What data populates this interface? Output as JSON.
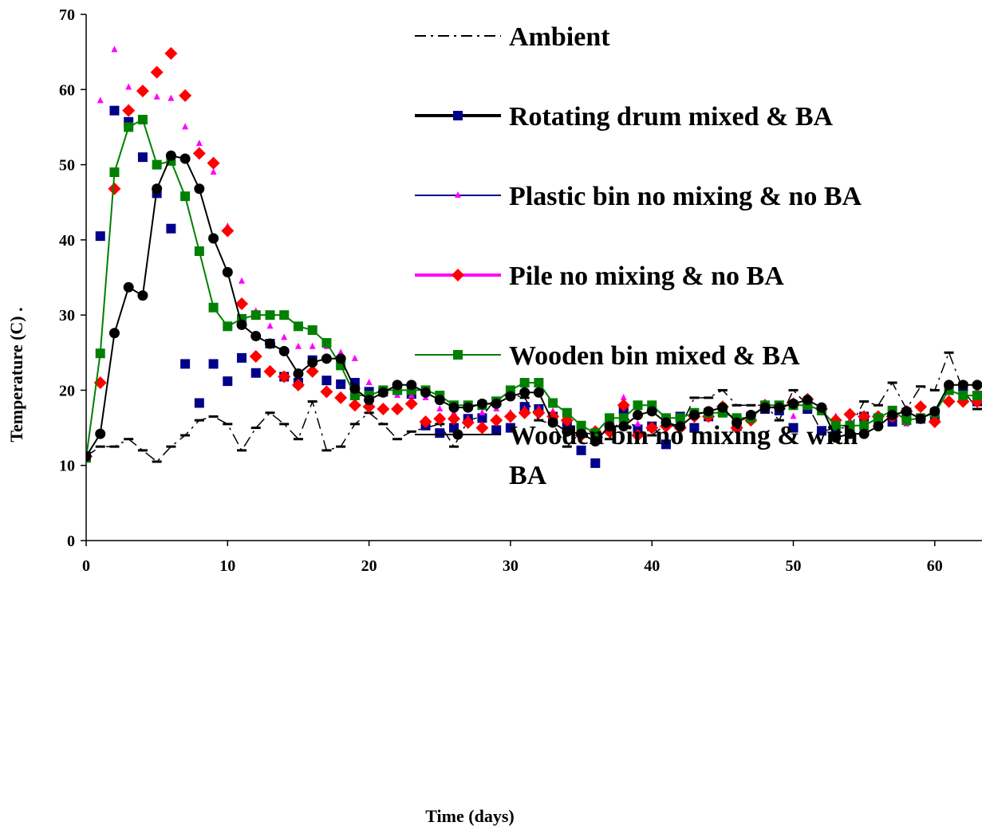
{
  "chart_data": {
    "type": "line",
    "title": "",
    "xlabel": "Time (days)",
    "ylabel": "Temperature (C)  .",
    "xlim": [
      0,
      63
    ],
    "ylim": [
      0,
      70
    ],
    "x_ticks": [
      0,
      10,
      20,
      30,
      40,
      50,
      60
    ],
    "y_ticks": [
      0,
      10,
      20,
      30,
      40,
      50,
      60,
      70
    ],
    "grid": false,
    "legend_position": "top-right",
    "series": [
      {
        "name": "Ambient",
        "color": "#000000",
        "line": "dashdot",
        "marker": "dash",
        "x": [
          0,
          1,
          2,
          3,
          4,
          5,
          6,
          7,
          8,
          9,
          10,
          11,
          12,
          13,
          14,
          15,
          16,
          17,
          18,
          19,
          20,
          21,
          22,
          23,
          24,
          25,
          26,
          27,
          28,
          29,
          30,
          31,
          32,
          33,
          34,
          35,
          36,
          37,
          38,
          39,
          40,
          41,
          42,
          43,
          44,
          45,
          46,
          47,
          48,
          49,
          50,
          51,
          52,
          53,
          54,
          55,
          56,
          57,
          58,
          59,
          60,
          61,
          62,
          63
        ],
        "y": [
          11.2,
          12.5,
          12.5,
          13.5,
          12,
          10.5,
          12.5,
          14,
          16,
          16.5,
          15.5,
          12,
          15,
          17,
          15.5,
          13.5,
          18.5,
          12,
          12.5,
          15.5,
          17,
          15.5,
          13.5,
          14.5,
          15,
          15.5,
          12.5,
          16,
          16.5,
          19,
          19.5,
          19,
          16,
          15.5,
          12.5,
          14.5,
          14,
          13.5,
          17,
          14.5,
          14,
          15.5,
          15,
          19,
          19,
          20,
          18,
          18,
          18,
          16,
          20,
          18,
          14.5,
          15,
          15,
          18.5,
          18,
          21,
          17.5,
          20.5,
          20,
          25,
          20,
          17.5
        ]
      },
      {
        "name": "Rotating drum mixed & BA",
        "color": "#00008b",
        "line": "none",
        "marker": "square",
        "x": [
          0,
          1,
          2,
          3,
          4,
          5,
          6,
          7,
          8,
          9,
          10,
          11,
          12,
          13,
          14,
          15,
          16,
          17,
          18,
          19,
          20,
          21,
          22,
          23,
          24,
          25,
          26,
          27,
          28,
          29,
          30,
          31,
          32,
          33,
          34,
          35,
          36,
          37,
          38,
          39,
          40,
          41,
          42,
          43,
          44,
          45,
          46,
          47,
          48,
          49,
          50,
          51,
          52,
          53,
          54,
          55,
          56,
          57,
          58,
          59,
          60,
          61,
          62,
          63
        ],
        "y": [
          11.2,
          40.5,
          57.2,
          55.7,
          51,
          46.2,
          41.5,
          23.5,
          18.3,
          23.5,
          21.2,
          24.3,
          22.3,
          26.2,
          21.8,
          21,
          24,
          21.3,
          20.8,
          21,
          19.8,
          19.8,
          20,
          19.5,
          15.3,
          14.3,
          15,
          16.2,
          16.3,
          14.7,
          15,
          17.8,
          17.5,
          16.5,
          15.5,
          12,
          10.3,
          15,
          17.5,
          14.8,
          15.2,
          12.8,
          16.5,
          15,
          16.5,
          17.2,
          15.2,
          16.5,
          17.5,
          17.3,
          15,
          17.5,
          14.6,
          14.5,
          14.5,
          16.5,
          16.2,
          15.8,
          16.5,
          16.2,
          16.5,
          20,
          20.5,
          18.5
        ]
      },
      {
        "name": "Plastic bin no mixing & no BA",
        "color": "#ff00ff",
        "line": "none",
        "marker": "triangle",
        "x": [
          0,
          1,
          2,
          3,
          4,
          5,
          6,
          7,
          8,
          9,
          10,
          11,
          12,
          13,
          14,
          15,
          16,
          17,
          18,
          19,
          20,
          21,
          22,
          23,
          24,
          25,
          26,
          27,
          28,
          29,
          30,
          31,
          32,
          33,
          34,
          35,
          36,
          37,
          38,
          39,
          40,
          41,
          42,
          43,
          44,
          45,
          46,
          47,
          48,
          49,
          50,
          51,
          52,
          53,
          54,
          55,
          56,
          57,
          58,
          59,
          60,
          61,
          62,
          63
        ],
        "y": [
          11.2,
          58.5,
          65.3,
          60.3,
          60,
          59,
          58.8,
          55,
          52.8,
          49,
          41.8,
          34.5,
          30.5,
          28.5,
          27,
          25.8,
          25.8,
          25.8,
          25,
          24.2,
          21,
          19.8,
          19.3,
          19.3,
          19,
          17.5,
          17,
          16.2,
          17,
          17.5,
          17,
          17.5,
          17.5,
          17.2,
          16.5,
          14,
          14,
          14.5,
          19,
          15.5,
          14.8,
          15,
          15,
          16.5,
          16.5,
          17,
          15.5,
          16.5,
          17.5,
          18,
          16.5,
          18.5,
          17,
          16.5,
          16,
          15.2,
          16,
          16.2,
          15.5,
          16,
          16.2,
          18.5,
          19,
          20
        ]
      },
      {
        "name": "Pile no mixing & no BA",
        "color": "#ff0000",
        "line": "none",
        "marker": "diamond",
        "x": [
          0,
          1,
          2,
          3,
          4,
          5,
          6,
          7,
          8,
          9,
          10,
          11,
          12,
          13,
          14,
          15,
          16,
          17,
          18,
          19,
          20,
          21,
          22,
          23,
          24,
          25,
          26,
          27,
          28,
          29,
          30,
          31,
          32,
          33,
          34,
          35,
          36,
          37,
          38,
          39,
          40,
          41,
          42,
          43,
          44,
          45,
          46,
          47,
          48,
          49,
          50,
          51,
          52,
          53,
          54,
          55,
          56,
          57,
          58,
          59,
          60,
          61,
          62,
          63
        ],
        "y": [
          11.2,
          21,
          46.8,
          57.2,
          59.8,
          62.3,
          64.8,
          59.2,
          51.5,
          50.2,
          41.2,
          31.5,
          24.5,
          22.5,
          21.8,
          20.7,
          22.5,
          19.8,
          19,
          18,
          17.8,
          17.5,
          17.5,
          18.2,
          15.8,
          16.2,
          16.2,
          15.7,
          15,
          16,
          16.5,
          17,
          17,
          16.5,
          16,
          14,
          14.5,
          14.5,
          18,
          14,
          15,
          15.2,
          15,
          16.5,
          16.5,
          17.8,
          15,
          16,
          18,
          17.8,
          18.2,
          18.8,
          17.5,
          16,
          16.8,
          16.5,
          16.5,
          16.5,
          17.2,
          17.8,
          15.8,
          18.5,
          18.5,
          18.5
        ]
      },
      {
        "name": "Wooden bin mixed & BA",
        "color": "#008000",
        "line": "solid",
        "marker": "square",
        "x": [
          0,
          1,
          2,
          3,
          4,
          5,
          6,
          7,
          8,
          9,
          10,
          11,
          12,
          13,
          14,
          15,
          16,
          17,
          18,
          19,
          20,
          21,
          22,
          23,
          24,
          25,
          26,
          27,
          28,
          29,
          30,
          31,
          32,
          33,
          34,
          35,
          36,
          37,
          38,
          39,
          40,
          41,
          42,
          43,
          44,
          45,
          46,
          47,
          48,
          49,
          50,
          51,
          52,
          53,
          54,
          55,
          56,
          57,
          58,
          59,
          60,
          61,
          62,
          63
        ],
        "y": [
          11,
          24.9,
          49,
          55,
          56,
          50,
          50.5,
          45.8,
          38.5,
          31,
          28.5,
          29.5,
          30,
          30,
          30,
          28.5,
          28,
          26.3,
          23.3,
          19.3,
          19.3,
          20,
          20,
          20,
          20,
          19.3,
          18,
          18,
          18,
          18.5,
          20,
          21,
          21,
          18.3,
          17,
          15.3,
          14.3,
          16.3,
          16.3,
          18,
          18,
          16.3,
          16.3,
          17,
          17,
          17,
          16.3,
          16.3,
          18,
          18,
          18,
          18,
          17.3,
          15.3,
          15.3,
          15.3,
          16.3,
          17.3,
          16,
          16.3,
          17,
          20,
          19.3,
          19.3
        ]
      },
      {
        "name": "Wooden bin no mixing & with BA",
        "color": "#000000",
        "line": "solid",
        "marker": "circle",
        "x": [
          0,
          1,
          2,
          3,
          4,
          5,
          6,
          7,
          8,
          9,
          10,
          11,
          12,
          13,
          14,
          15,
          16,
          17,
          18,
          19,
          20,
          21,
          22,
          23,
          24,
          25,
          26,
          27,
          28,
          29,
          30,
          31,
          32,
          33,
          34,
          35,
          36,
          37,
          38,
          39,
          40,
          41,
          42,
          43,
          44,
          45,
          46,
          47,
          48,
          49,
          50,
          51,
          52,
          53,
          54,
          55,
          56,
          57,
          58,
          59,
          60,
          61,
          62,
          63
        ],
        "y": [
          11.2,
          14.2,
          27.6,
          33.7,
          32.6,
          46.8,
          51.2,
          50.8,
          46.8,
          40.2,
          35.7,
          28.7,
          27.2,
          26.2,
          25.2,
          22.2,
          23.7,
          24.2,
          24.2,
          20.2,
          18.7,
          19.7,
          20.7,
          20.7,
          19.7,
          18.7,
          17.7,
          17.7,
          18.2,
          18.2,
          19.2,
          19.7,
          19.7,
          15.7,
          14.5,
          14.2,
          13.2,
          15.2,
          15.2,
          16.7,
          17.2,
          15.7,
          15.2,
          16.7,
          17.2,
          17.7,
          15.7,
          16.7,
          17.7,
          17.7,
          18.2,
          18.7,
          17.7,
          13.7,
          14.2,
          14.2,
          15.2,
          16.7,
          17.2,
          16.2,
          17.2,
          20.7,
          20.7,
          20.7
        ]
      }
    ]
  }
}
